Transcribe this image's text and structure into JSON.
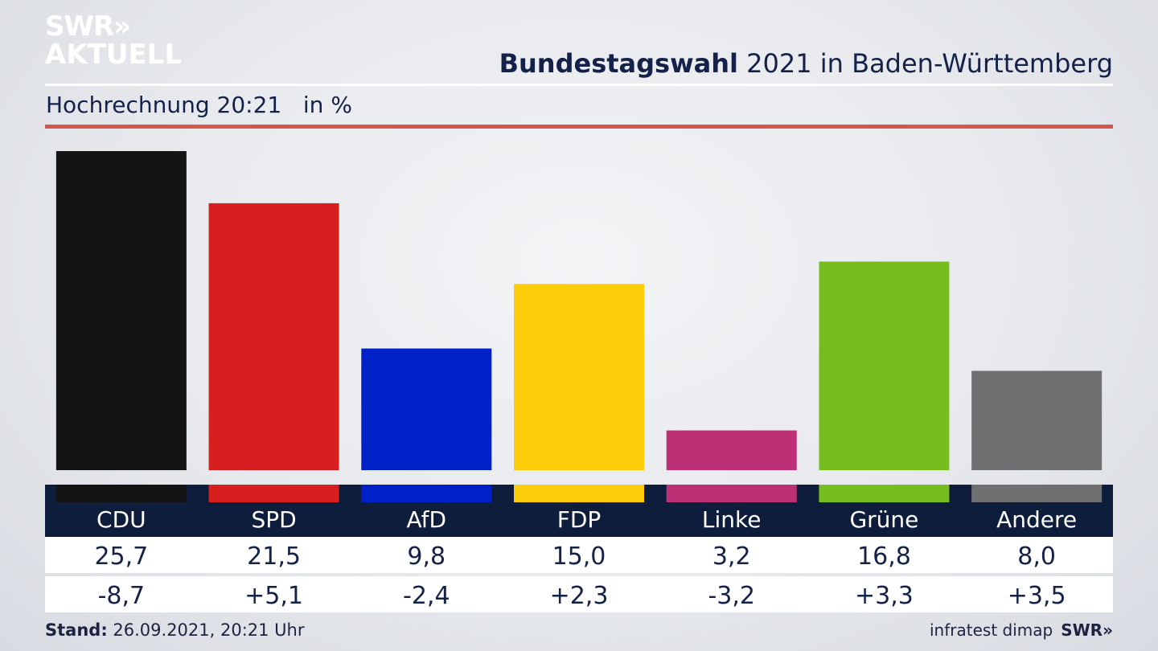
{
  "logo": {
    "line1": "SWR",
    "chevrons": "»",
    "line2": "AKTUELL"
  },
  "header": {
    "title_bold": "Bundestagswahl",
    "title_rest": " 2021 in Baden-Württemberg",
    "subtitle": "Hochrechnung 20:21   in %"
  },
  "footer": {
    "stand_label": "Stand:",
    "stand_value": " 26.09.2021, 20:21 Uhr",
    "source": "infratest dimap",
    "source_brand": "SWR»"
  },
  "colors": {
    "table_header_bg": "#0f1d3d",
    "CDU": "#141414",
    "SPD": "#d81f1f",
    "AfD": "#0020c8",
    "FDP": "#fdcc0a",
    "Linke": "#be3075",
    "Grüne": "#77bd1e",
    "Andere": "#707072"
  },
  "chart_data": {
    "type": "bar",
    "categories": [
      "CDU",
      "SPD",
      "AfD",
      "FDP",
      "Linke",
      "Grüne",
      "Andere"
    ],
    "values": [
      25.7,
      21.5,
      9.8,
      15.0,
      3.2,
      16.8,
      8.0
    ],
    "value_labels": [
      "25,7",
      "21,5",
      "9,8",
      "15,0",
      "3,2",
      "16,8",
      "8,0"
    ],
    "change_labels": [
      "-8,7",
      "+5,1",
      "-2,4",
      "+2,3",
      "-3,2",
      "+3,3",
      "+3,5"
    ],
    "changes": [
      -8.7,
      5.1,
      -2.4,
      2.3,
      -3.2,
      3.3,
      3.5
    ],
    "ylim": [
      0,
      25.7
    ],
    "grid": false
  }
}
